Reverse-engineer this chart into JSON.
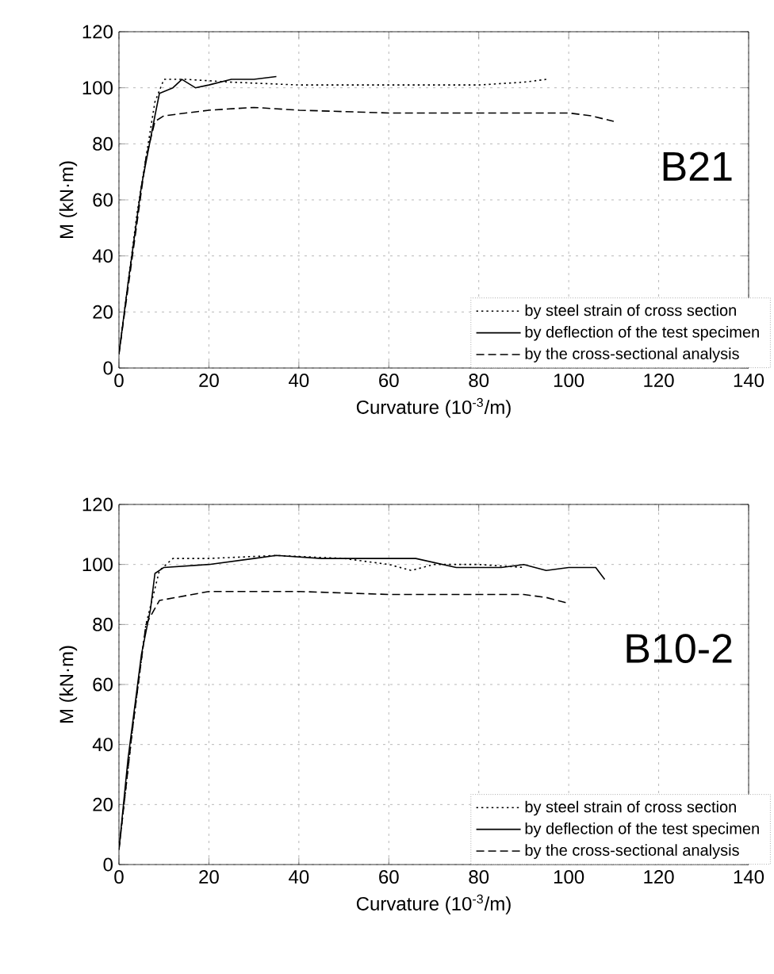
{
  "chart_data": [
    {
      "type": "line",
      "xlabel": "Curvature (10$^{-3}$/m)",
      "ylabel": "M (kN·m)",
      "annotations": [
        "B21"
      ],
      "xlim": [
        0,
        140
      ],
      "ylim": [
        0,
        120
      ],
      "xticks": [
        0,
        20,
        40,
        60,
        80,
        100,
        120,
        140
      ],
      "yticks": [
        0,
        20,
        40,
        60,
        80,
        100,
        120
      ],
      "grid": true,
      "legend": "bottom right",
      "series": [
        {
          "name": "by steel strain of cross section",
          "color": "#000000",
          "line_style": "dotted",
          "x": [
            0,
            2,
            4,
            6,
            8,
            10,
            15,
            25,
            40,
            60,
            80,
            90,
            95
          ],
          "values": [
            5,
            30,
            55,
            75,
            95,
            103,
            103,
            102,
            101,
            101,
            101,
            102,
            103
          ]
        },
        {
          "name": "by deflection of the test specimen",
          "color": "#000000",
          "line_style": "solid",
          "x": [
            0,
            2,
            5,
            8,
            9,
            12,
            14,
            17,
            20,
            25,
            30,
            35
          ],
          "values": [
            5,
            30,
            65,
            90,
            98,
            100,
            103,
            100,
            101,
            103,
            103,
            104
          ]
        },
        {
          "name": "by the cross-sectional analysis",
          "color": "#000000",
          "line_style": "dashed",
          "x": [
            0,
            3,
            6,
            8,
            10,
            20,
            30,
            40,
            60,
            80,
            100,
            105,
            110
          ],
          "values": [
            5,
            40,
            75,
            88,
            90,
            92,
            93,
            92,
            91,
            91,
            91,
            90,
            88
          ]
        }
      ]
    },
    {
      "type": "line",
      "xlabel": "Curvature (10$^{-3}$/m)",
      "ylabel": "M (kN·m)",
      "annotations": [
        "B10-2"
      ],
      "xlim": [
        0,
        140
      ],
      "ylim": [
        0,
        120
      ],
      "xticks": [
        0,
        20,
        40,
        60,
        80,
        100,
        120,
        140
      ],
      "yticks": [
        0,
        20,
        40,
        60,
        80,
        100,
        120
      ],
      "grid": true,
      "legend": "bottom right",
      "series": [
        {
          "name": "by steel strain of cross section",
          "color": "#000000",
          "line_style": "dotted",
          "x": [
            0,
            3,
            6,
            8,
            9,
            12,
            20,
            35,
            50,
            60,
            65,
            70,
            80,
            90
          ],
          "values": [
            5,
            45,
            80,
            92,
            98,
            102,
            102,
            103,
            102,
            100,
            98,
            100,
            100,
            99
          ]
        },
        {
          "name": "by deflection of the test specimen",
          "color": "#000000",
          "line_style": "solid",
          "x": [
            0,
            2,
            5,
            7,
            8,
            10,
            20,
            30,
            35,
            45,
            60,
            66,
            75,
            85,
            90,
            95,
            100,
            106,
            108
          ],
          "values": [
            5,
            35,
            70,
            85,
            97,
            99,
            100,
            102,
            103,
            102,
            102,
            102,
            99,
            99,
            100,
            98,
            99,
            99,
            95
          ]
        },
        {
          "name": "by the cross-sectional analysis",
          "color": "#000000",
          "line_style": "dashed",
          "x": [
            0,
            3,
            6,
            9,
            20,
            40,
            60,
            80,
            90,
            95,
            100
          ],
          "values": [
            5,
            45,
            80,
            88,
            91,
            91,
            90,
            90,
            90,
            89,
            87
          ]
        }
      ]
    }
  ]
}
